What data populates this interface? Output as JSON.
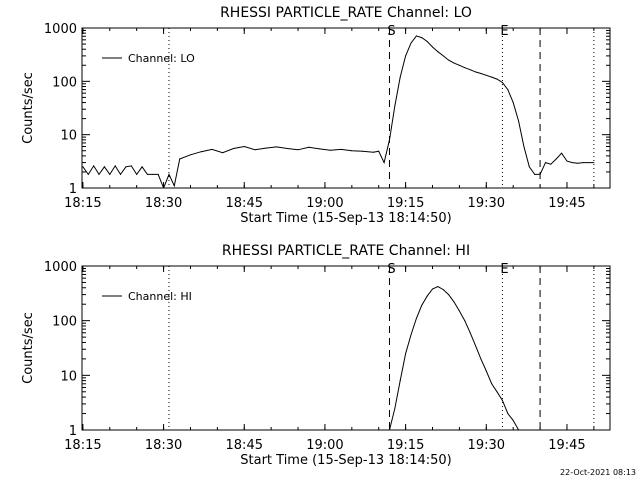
{
  "footer": {
    "timestamp": "22-Oct-2021 08:13"
  },
  "chart_data": [
    {
      "type": "line",
      "title": "RHESSI PARTICLE_RATE Channel: LO",
      "xlabel": "Start Time (15-Sep-13 18:14:50)",
      "ylabel": "Counts/sec",
      "yscale": "log",
      "xlim": [
        "18:14:50",
        "19:53:00"
      ],
      "ylim": [
        1,
        1000
      ],
      "x_ticks": [
        "18:15",
        "18:30",
        "18:45",
        "19:00",
        "19:15",
        "19:30",
        "19:45"
      ],
      "y_ticks": [
        "1",
        "10",
        "100",
        "1000"
      ],
      "legend": {
        "position": "upper-left",
        "label": "Channel: LO"
      },
      "series": [
        {
          "name": "Channel: LO",
          "x": [
            "18:15",
            "18:16",
            "18:17",
            "18:18",
            "18:19",
            "18:20",
            "18:21",
            "18:22",
            "18:23",
            "18:24",
            "18:25",
            "18:26",
            "18:27",
            "18:28",
            "18:29",
            "18:30",
            "18:31",
            "18:32",
            "18:33",
            "18:35",
            "18:37",
            "18:39",
            "18:41",
            "18:43",
            "18:45",
            "18:47",
            "18:49",
            "18:51",
            "18:53",
            "18:55",
            "18:57",
            "18:59",
            "19:01",
            "19:03",
            "19:05",
            "19:07",
            "19:09",
            "19:10",
            "19:11",
            "19:12",
            "19:13",
            "19:14",
            "19:15",
            "19:16",
            "19:17",
            "19:18",
            "19:19",
            "19:20",
            "19:21",
            "19:22",
            "19:23",
            "19:24",
            "19:25",
            "19:26",
            "19:27",
            "19:28",
            "19:29",
            "19:30",
            "19:31",
            "19:32",
            "19:33",
            "19:34",
            "19:35",
            "19:36",
            "19:37",
            "19:38",
            "19:39",
            "19:40",
            "19:41",
            "19:42",
            "19:43",
            "19:44",
            "19:45",
            "19:46",
            "19:47",
            "19:48",
            "19:49",
            "19:50"
          ],
          "y": [
            2.5,
            1.8,
            2.6,
            1.8,
            2.5,
            1.8,
            2.6,
            1.8,
            2.5,
            2.6,
            1.8,
            2.5,
            1.8,
            1.8,
            1.8,
            1.0,
            1.8,
            1.1,
            3.5,
            4.2,
            4.8,
            5.3,
            4.6,
            5.5,
            6.0,
            5.2,
            5.6,
            5.9,
            5.5,
            5.2,
            5.8,
            5.4,
            5.1,
            5.3,
            5.0,
            4.9,
            4.7,
            4.9,
            3.0,
            8,
            35,
            120,
            300,
            520,
            710,
            660,
            560,
            440,
            360,
            300,
            250,
            220,
            200,
            180,
            165,
            150,
            140,
            130,
            120,
            110,
            95,
            70,
            40,
            18,
            6,
            2.5,
            1.8,
            1.8,
            3.0,
            2.8,
            3.5,
            4.5,
            3.2,
            3.0,
            2.9,
            3.0,
            3.0,
            3.0
          ]
        }
      ],
      "vlines": [
        {
          "x": "18:31",
          "style": "dotted",
          "label": ""
        },
        {
          "x": "19:12",
          "style": "dashed",
          "label": "S"
        },
        {
          "x": "19:33",
          "style": "dotted",
          "label": "E"
        },
        {
          "x": "19:40",
          "style": "dashed",
          "label": ""
        },
        {
          "x": "19:50",
          "style": "dotted",
          "label": ""
        }
      ]
    },
    {
      "type": "line",
      "title": "RHESSI PARTICLE_RATE Channel: HI",
      "xlabel": "Start Time (15-Sep-13 18:14:50)",
      "ylabel": "Counts/sec",
      "yscale": "log",
      "xlim": [
        "18:14:50",
        "19:53:00"
      ],
      "ylim": [
        1,
        1000
      ],
      "x_ticks": [
        "18:15",
        "18:30",
        "18:45",
        "19:00",
        "19:15",
        "19:30",
        "19:45"
      ],
      "y_ticks": [
        "1",
        "10",
        "100",
        "1000"
      ],
      "legend": {
        "position": "upper-left",
        "label": "Channel: HI"
      },
      "series": [
        {
          "name": "Channel: HI",
          "x": [
            "19:12",
            "19:13",
            "19:14",
            "19:15",
            "19:16",
            "19:17",
            "19:18",
            "19:19",
            "19:20",
            "19:21",
            "19:22",
            "19:23",
            "19:24",
            "19:25",
            "19:26",
            "19:27",
            "19:28",
            "19:29",
            "19:30",
            "19:31",
            "19:32",
            "19:33",
            "19:34",
            "19:35",
            "19:36"
          ],
          "y": [
            1.0,
            2.5,
            8,
            25,
            55,
            110,
            190,
            280,
            380,
            420,
            370,
            300,
            220,
            150,
            100,
            60,
            35,
            20,
            12,
            7,
            5,
            3.5,
            2.0,
            1.5,
            1.0
          ]
        }
      ],
      "vlines": [
        {
          "x": "18:31",
          "style": "dotted",
          "label": ""
        },
        {
          "x": "19:12",
          "style": "dashed",
          "label": "S"
        },
        {
          "x": "19:33",
          "style": "dotted",
          "label": "E"
        },
        {
          "x": "19:40",
          "style": "dashed",
          "label": ""
        },
        {
          "x": "19:50",
          "style": "dotted",
          "label": ""
        }
      ]
    }
  ]
}
